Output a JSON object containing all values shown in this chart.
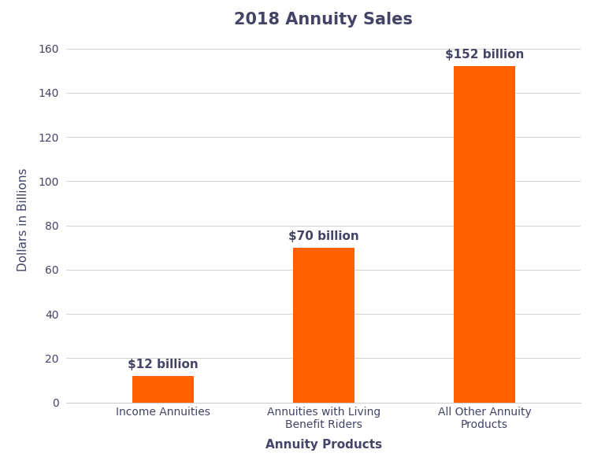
{
  "title": "2018 Annuity Sales",
  "categories": [
    "Income Annuities",
    "Annuities with Living\nBenefit Riders",
    "All Other Annuity\nProducts"
  ],
  "values": [
    12,
    70,
    152
  ],
  "bar_color": "#FF6000",
  "bar_labels": [
    "$12 billion",
    "$70 billion",
    "$152 billion"
  ],
  "xlabel": "Annuity Products",
  "ylabel": "Dollars in Billions",
  "ylim": [
    0,
    165
  ],
  "yticks": [
    0,
    20,
    40,
    60,
    80,
    100,
    120,
    140,
    160
  ],
  "title_fontsize": 15,
  "label_fontsize": 11,
  "tick_fontsize": 10,
  "annotation_fontsize": 11,
  "background_color": "#FFFFFF",
  "grid_color": "#CCCCCC",
  "text_color": "#444466",
  "bar_width": 0.38
}
